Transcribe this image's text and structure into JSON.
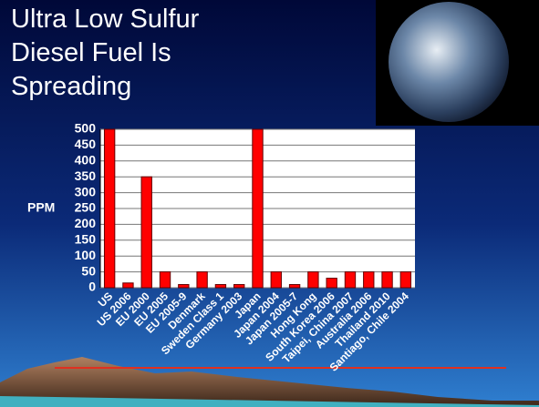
{
  "chart_data": {
    "type": "bar",
    "title": [
      "Ultra Low Sulfur",
      " Diesel Fuel Is",
      "Spreading"
    ],
    "y_label": "PPM",
    "categories": [
      "US",
      "US 2006",
      "EU 2000",
      "EU 2005",
      "EU 2005-9",
      "Denmark",
      "Sweden Class 1",
      "Germany 2003",
      "Japan",
      "Japan 2004",
      "Japan 2005-7",
      "Hong Kong",
      "South Korea 2006",
      "Taipei, China 2007",
      "Australia 2006",
      "Thailand 2010",
      "Santiago, Chile 2004"
    ],
    "values": [
      500,
      15,
      350,
      50,
      10,
      50,
      10,
      10,
      500,
      50,
      10,
      50,
      30,
      50,
      50,
      50,
      50
    ],
    "color": "#ff0000",
    "ylim": [
      0,
      500
    ],
    "yticks": [
      0,
      50,
      100,
      150,
      200,
      250,
      300,
      350,
      400,
      450,
      500
    ],
    "grid": true
  }
}
